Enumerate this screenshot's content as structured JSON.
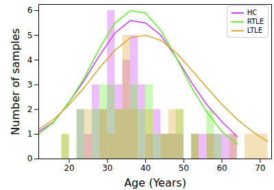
{
  "chart_data": {
    "type": "histogram",
    "xlabel": "Age (Years)",
    "ylabel": "Number of samples",
    "xlim": [
      12,
      73
    ],
    "ylim": [
      0,
      6.25
    ],
    "xticks": [
      20,
      30,
      40,
      50,
      60,
      70
    ],
    "yticks": [
      0,
      1,
      2,
      3,
      4,
      5,
      6
    ],
    "grid": false,
    "legend": "upper right",
    "series": [
      {
        "name": "HC",
        "color": "#cc44ee",
        "bins": [
          22,
          24,
          26,
          28,
          30,
          32,
          34,
          36,
          38,
          40,
          42,
          44,
          46,
          48,
          50,
          52,
          54,
          56,
          58,
          60,
          62,
          64
        ],
        "values": [
          2,
          1,
          3,
          2,
          6,
          3,
          4,
          5,
          3,
          1,
          2,
          1,
          1,
          1,
          0,
          1,
          1,
          1,
          1,
          1,
          1
        ],
        "curve_x": [
          12,
          16,
          20,
          24,
          28,
          32,
          36,
          40,
          44,
          48,
          52,
          56,
          60,
          64
        ],
        "curve_values": [
          1.1,
          1.5,
          2.3,
          3.2,
          4.2,
          5.1,
          5.6,
          5.5,
          5.0,
          4.1,
          3.1,
          2.2,
          1.5,
          0.9
        ]
      },
      {
        "name": "RTLE",
        "color": "#66ee33",
        "bins": [
          18,
          20,
          22,
          24,
          26,
          28,
          30,
          32,
          34,
          36,
          38,
          40,
          42,
          44,
          46,
          48,
          50,
          52,
          54,
          56,
          58,
          60
        ],
        "values": [
          1,
          0,
          2,
          0,
          2,
          3,
          3,
          2,
          2,
          3,
          2,
          3,
          1,
          1,
          1,
          2,
          0,
          1,
          0,
          2,
          1
        ],
        "curve_x": [
          12,
          16,
          20,
          24,
          28,
          32,
          36,
          40,
          44,
          48,
          52,
          56,
          60,
          64
        ],
        "curve_values": [
          1.0,
          1.5,
          2.3,
          3.3,
          4.5,
          5.5,
          6.0,
          5.9,
          5.2,
          4.1,
          2.9,
          1.9,
          1.1,
          0.6
        ]
      },
      {
        "name": "LTLE",
        "color": "#ddaa33",
        "bins": [
          18,
          20,
          22,
          24,
          26,
          28,
          30,
          32,
          34,
          36,
          38,
          40,
          42,
          44,
          46,
          48,
          50,
          52,
          54,
          56,
          58,
          60,
          62,
          64,
          66,
          68,
          70,
          72
        ],
        "values": [
          1,
          0,
          0,
          2,
          0,
          2,
          1,
          2,
          5,
          2,
          0,
          2,
          0,
          1,
          2,
          2,
          0,
          1,
          0,
          1,
          0,
          0,
          1,
          0,
          1,
          1,
          1
        ],
        "curve_x": [
          12,
          16,
          20,
          24,
          28,
          32,
          36,
          40,
          44,
          48,
          52,
          56,
          60,
          64,
          68,
          72
        ],
        "curve_values": [
          1.2,
          1.6,
          2.2,
          2.9,
          3.7,
          4.4,
          4.9,
          5.0,
          4.8,
          4.3,
          3.6,
          2.9,
          2.2,
          1.6,
          1.1,
          0.7
        ]
      }
    ]
  }
}
